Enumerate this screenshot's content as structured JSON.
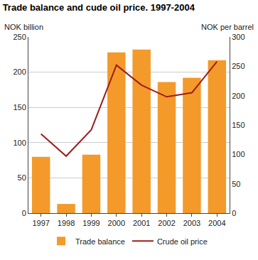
{
  "chart_data": {
    "type": "bar",
    "title": "Trade balance and cude oil price. 1997-2004",
    "ylabel": "NOK billion",
    "y2label": "NOK per barrel",
    "categories": [
      "1997",
      "1998",
      "1999",
      "2000",
      "2001",
      "2002",
      "2003",
      "2004"
    ],
    "series": [
      {
        "name": "Trade balance",
        "type": "bar",
        "color": "#f39a2b",
        "values": [
          80,
          13,
          83,
          228,
          232,
          186,
          192,
          217
        ]
      },
      {
        "name": "Crude oil price",
        "type": "line",
        "axis": "y2",
        "color": "#9e1b1b",
        "values": [
          135,
          97,
          142,
          252,
          218,
          198,
          205,
          258
        ]
      }
    ],
    "ylim": [
      0,
      250
    ],
    "yticks": [
      0,
      50,
      100,
      150,
      200,
      250
    ],
    "y2lim": [
      0,
      300
    ],
    "y2ticks": [
      0,
      50,
      100,
      150,
      200,
      250,
      300
    ],
    "grid": true,
    "legend": "bottom"
  }
}
